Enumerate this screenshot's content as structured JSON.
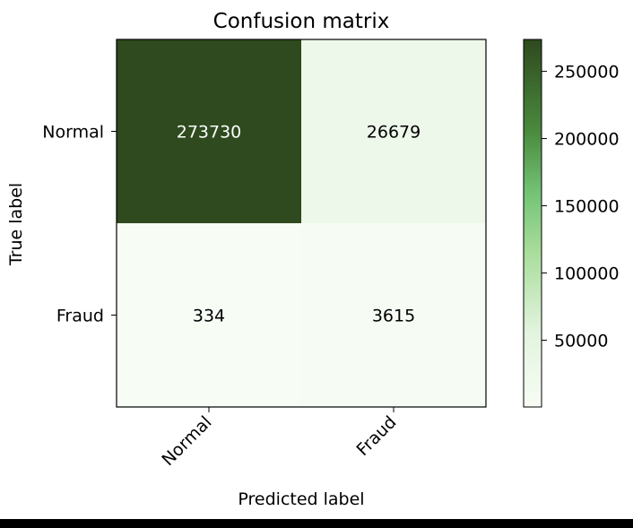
{
  "chart_data": {
    "type": "heatmap",
    "title": "Confusion matrix",
    "xlabel": "Predicted label",
    "ylabel": "True label",
    "x_categories": [
      "Normal",
      "Fraud"
    ],
    "y_categories": [
      "Normal",
      "Fraud"
    ],
    "values": [
      [
        273730,
        26679
      ],
      [
        334,
        3615
      ]
    ],
    "colormap": "greens",
    "colorbar": {
      "min": 334,
      "max": 273730,
      "ticks": [
        50000,
        100000,
        150000,
        200000,
        250000
      ],
      "tick_labels": [
        "50000",
        "100000",
        "150000",
        "200000",
        "250000"
      ]
    },
    "colors": {
      "low": "#f7fcf5",
      "mid": "#74c476",
      "high": "#2e4a1e"
    }
  }
}
